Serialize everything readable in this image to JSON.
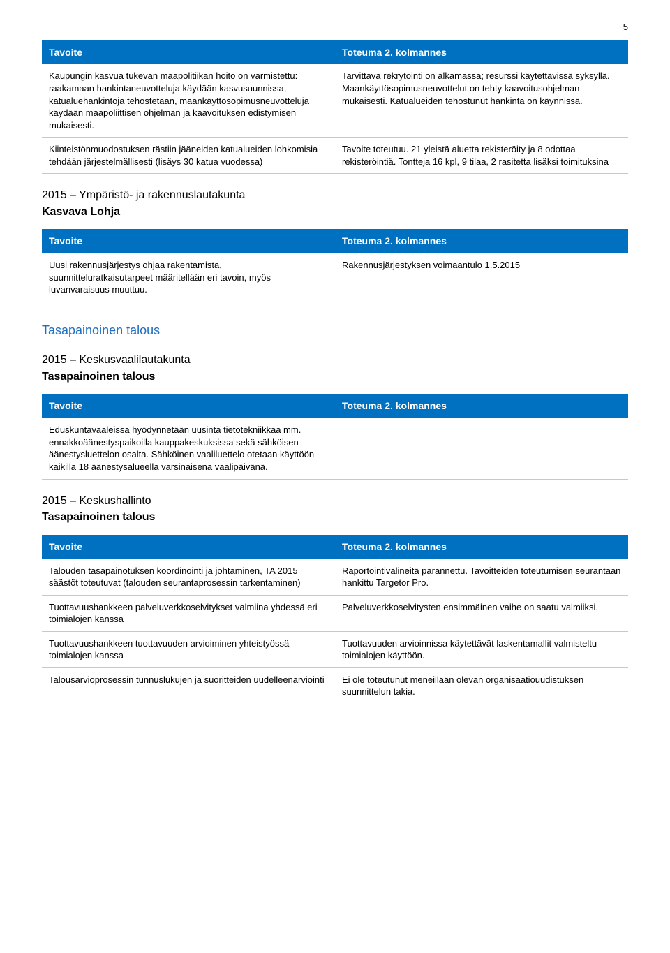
{
  "page_number": "5",
  "colors": {
    "header_bg": "#0070c0",
    "header_text": "#ffffff",
    "blue_heading": "#1f6fc2",
    "body_text": "#000000",
    "row_border": "#c8c8c8"
  },
  "tables": [
    {
      "header_left": "Tavoite",
      "header_right": "Toteuma 2. kolmannes",
      "rows": [
        {
          "left": "Kaupungin kasvua tukevan maapolitiikan hoito on varmistettu: raakamaan hankintaneuvotteluja käydään kasvusuunnissa, katualuehankintoja tehostetaan, maankäyttösopimusneuvotteluja käydään maapoliittisen ohjelman ja kaavoituksen edistymisen mukaisesti.",
          "right": "Tarvittava rekrytointi on alkamassa; resurssi käytettävissä syksyllä. Maankäyttösopimusneuvottelut on tehty kaavoitusohjelman mukaisesti. Katualueiden tehostunut hankinta on käynnissä."
        },
        {
          "left": "Kiinteistönmuodostuksen rästiin jääneiden katualueiden lohkomisia tehdään järjestelmällisesti (lisäys 30 katua vuodessa)",
          "right": "Tavoite toteutuu. 21 yleistä aluetta rekisteröity ja 8 odottaa rekisteröintiä. Tontteja 16 kpl, 9 tilaa, 2 rasitetta lisäksi toimituksina"
        }
      ]
    },
    {
      "section_title": "2015 – Ympäristö- ja rakennuslautakunta",
      "section_subtitle": "Kasvava Lohja",
      "header_left": "Tavoite",
      "header_right": "Toteuma 2. kolmannes",
      "rows": [
        {
          "left": "Uusi rakennusjärjestys ohjaa rakentamista, suunnitteluratkaisutarpeet määritellään eri tavoin, myös luvanvaraisuus muuttuu.",
          "right": "Rakennusjärjestyksen voimaantulo 1.5.2015"
        }
      ]
    },
    {
      "blue_heading": "Tasapainoinen talous",
      "section_title": "2015 – Keskusvaalilautakunta",
      "section_subtitle": "Tasapainoinen talous",
      "header_left": "Tavoite",
      "header_right": "Toteuma 2. kolmannes",
      "rows": [
        {
          "left": "Eduskuntavaaleissa hyödynnetään uusinta tietotekniikkaa mm. ennakkoäänestyspaikoilla kauppakeskuksissa sekä sähköisen äänestysluettelon osalta. Sähköinen vaaliluettelo otetaan käyttöön kaikilla 18 äänestysalueella varsinaisena vaalipäivänä.",
          "right": ""
        }
      ]
    },
    {
      "section_title": "2015 – Keskushallinto",
      "section_subtitle": "Tasapainoinen talous",
      "header_left": "Tavoite",
      "header_right": "Toteuma 2. kolmannes",
      "rows": [
        {
          "left": "Talouden tasapainotuksen koordinointi ja johtaminen, TA 2015 säästöt toteutuvat (talouden seurantaprosessin tarkentaminen)",
          "right": "Raportointivälineitä parannettu. Tavoitteiden toteutumisen seurantaan hankittu Targetor Pro."
        },
        {
          "left": "Tuottavuushankkeen palveluverkkoselvitykset valmiina yhdessä eri toimialojen kanssa",
          "right": "Palveluverkkoselvitysten ensimmäinen vaihe on saatu valmiiksi."
        },
        {
          "left": "Tuottavuushankkeen tuottavuuden arvioiminen yhteistyössä toimialojen kanssa",
          "right": "Tuottavuuden arvioinnissa käytettävät laskentamallit valmisteltu toimialojen käyttöön."
        },
        {
          "left": "Talousarvioprosessin tunnuslukujen ja suoritteiden uudelleenarviointi",
          "right": "Ei ole toteutunut meneillään olevan organisaatiouudistuksen suunnittelun takia."
        }
      ]
    }
  ]
}
